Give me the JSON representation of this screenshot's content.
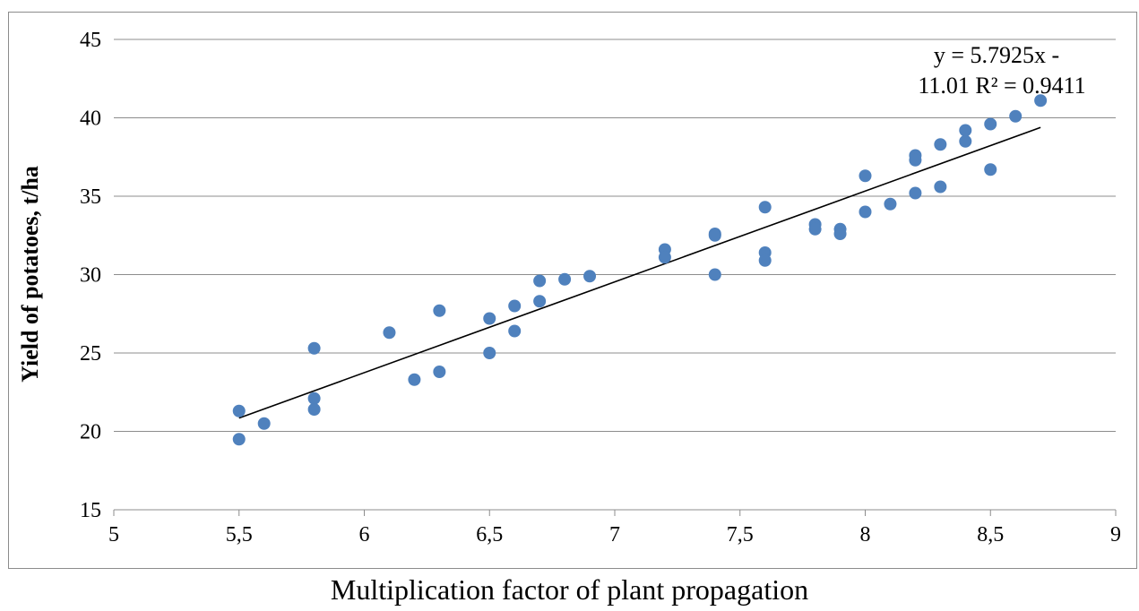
{
  "chart_data": {
    "type": "scatter",
    "title": "",
    "xlabel": "Multiplication factor of plant propagation",
    "ylabel": "Yield of potatoes, t/ha",
    "xlim": [
      5,
      9
    ],
    "ylim": [
      15,
      45
    ],
    "x_ticks": [
      "5",
      "5,5",
      "6",
      "6,5",
      "7",
      "7,5",
      "8",
      "8,5",
      "9"
    ],
    "y_ticks": [
      "15",
      "20",
      "25",
      "30",
      "35",
      "40",
      "45"
    ],
    "grid": "horizontal",
    "marker_color": "#4f81bd",
    "trendline_color": "#000000",
    "trendline": {
      "slope": 5.7925,
      "intercept": -11.01,
      "x_range": [
        5.5,
        8.7
      ],
      "equation_line1": "y = 5.7925x -",
      "equation_line2": "11.01 R² = 0.9411"
    },
    "points": [
      {
        "x": 5.5,
        "y": 21.3
      },
      {
        "x": 5.5,
        "y": 19.5
      },
      {
        "x": 5.6,
        "y": 20.5
      },
      {
        "x": 5.8,
        "y": 25.3
      },
      {
        "x": 5.8,
        "y": 22.1
      },
      {
        "x": 5.8,
        "y": 21.4
      },
      {
        "x": 6.1,
        "y": 26.3
      },
      {
        "x": 6.2,
        "y": 23.3
      },
      {
        "x": 6.3,
        "y": 27.7
      },
      {
        "x": 6.3,
        "y": 23.8
      },
      {
        "x": 6.5,
        "y": 27.2
      },
      {
        "x": 6.5,
        "y": 25.0
      },
      {
        "x": 6.6,
        "y": 28.0
      },
      {
        "x": 6.6,
        "y": 26.4
      },
      {
        "x": 6.7,
        "y": 29.6
      },
      {
        "x": 6.7,
        "y": 28.3
      },
      {
        "x": 6.8,
        "y": 29.7
      },
      {
        "x": 6.9,
        "y": 29.9
      },
      {
        "x": 7.2,
        "y": 31.6
      },
      {
        "x": 7.2,
        "y": 31.1
      },
      {
        "x": 7.4,
        "y": 32.6
      },
      {
        "x": 7.4,
        "y": 32.5
      },
      {
        "x": 7.4,
        "y": 30.0
      },
      {
        "x": 7.6,
        "y": 34.3
      },
      {
        "x": 7.6,
        "y": 31.4
      },
      {
        "x": 7.6,
        "y": 30.9
      },
      {
        "x": 7.8,
        "y": 33.2
      },
      {
        "x": 7.8,
        "y": 32.9
      },
      {
        "x": 7.9,
        "y": 32.9
      },
      {
        "x": 7.9,
        "y": 32.6
      },
      {
        "x": 8.0,
        "y": 36.3
      },
      {
        "x": 8.0,
        "y": 34.0
      },
      {
        "x": 8.1,
        "y": 34.5
      },
      {
        "x": 8.2,
        "y": 37.6
      },
      {
        "x": 8.2,
        "y": 37.3
      },
      {
        "x": 8.2,
        "y": 35.2
      },
      {
        "x": 8.3,
        "y": 38.3
      },
      {
        "x": 8.3,
        "y": 35.6
      },
      {
        "x": 8.4,
        "y": 39.2
      },
      {
        "x": 8.4,
        "y": 38.5
      },
      {
        "x": 8.5,
        "y": 39.6
      },
      {
        "x": 8.5,
        "y": 36.7
      },
      {
        "x": 8.6,
        "y": 40.1
      },
      {
        "x": 8.7,
        "y": 41.1
      }
    ]
  }
}
